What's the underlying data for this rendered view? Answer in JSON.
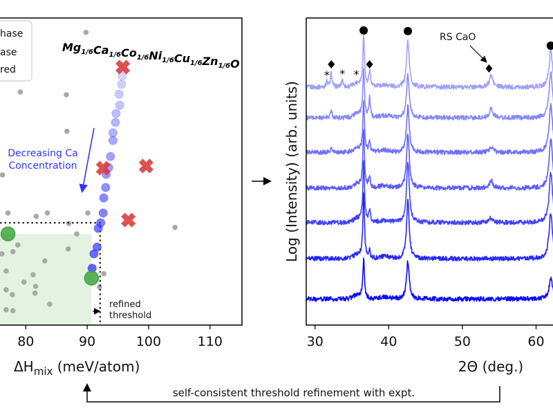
{
  "chart_data": [
    {
      "type": "scatter",
      "title": {
        "elements": [
          "Mg",
          "Ca",
          "Co",
          "Ni",
          "Cu",
          "Zn",
          "O"
        ],
        "subscript": "1/6"
      },
      "xlabel": {
        "main": "ΔH",
        "sub": "mix",
        "unit": " (meV/atom)"
      },
      "ylabel": "",
      "xlim": [
        75.8,
        115.2
      ],
      "ylim": [
        0,
        100
      ],
      "xticks": [
        "80",
        "90",
        "100",
        "110"
      ],
      "legend": {
        "placement": "top-left",
        "entries": [
          "hase",
          "ase",
          "red"
        ]
      },
      "annotations": {
        "ca_line": [
          "Decreasing Ca",
          "Concentration"
        ],
        "threshold": [
          "refined",
          "threshold"
        ]
      },
      "threshold": {
        "x": 92.1,
        "y": 33.3
      },
      "shaded_region": {
        "xmax": 90.7,
        "ymax": 29.7,
        "color": "#d9ecd5"
      },
      "colors": {
        "gray": "#a9a9a9",
        "blue": "#3333ff",
        "red": "#d83a3a",
        "green": "#3fa63f"
      },
      "series": [
        {
          "kind": "gray",
          "points": [
            [
              89.8,
              95.3
            ],
            [
              79.1,
              75.9
            ],
            [
              86.6,
              75.0
            ],
            [
              86.7,
              63.1
            ],
            [
              76.2,
              48.9
            ],
            [
              77.1,
              36.5
            ],
            [
              81.7,
              35.4
            ],
            [
              83.5,
              36.5
            ],
            [
              90.1,
              36.5
            ],
            [
              87.0,
              33.1
            ],
            [
              88.3,
              29.7
            ],
            [
              78.7,
              26.1
            ],
            [
              77.9,
              23.9
            ],
            [
              76.1,
              23.2
            ],
            [
              86.9,
              24.8
            ],
            [
              83.1,
              20.9
            ],
            [
              76.8,
              17.6
            ],
            [
              81.2,
              16.4
            ],
            [
              79.7,
              14.0
            ],
            [
              92.7,
              16.7
            ],
            [
              81.6,
              12.6
            ],
            [
              81.5,
              10.4
            ],
            [
              76.8,
              11.5
            ],
            [
              77.8,
              9.9
            ],
            [
              92.0,
              12.4
            ],
            [
              83.9,
              6.8
            ],
            [
              76.8,
              5.0
            ],
            [
              77.9,
              4.7
            ],
            [
              104.3,
              31.8
            ]
          ]
        },
        {
          "kind": "blue",
          "points": [
            [
              95.7,
              81.1
            ],
            [
              95.6,
              78.4
            ],
            [
              95.2,
              75.2
            ],
            [
              95.3,
              71.6
            ],
            [
              94.7,
              68.9
            ],
            [
              94.6,
              66.0
            ],
            [
              94.2,
              62.6
            ],
            [
              94.2,
              60.1
            ],
            [
              93.8,
              54.9
            ],
            [
              93.5,
              51.3
            ],
            [
              93.1,
              49.1
            ],
            [
              93.0,
              44.8
            ],
            [
              92.7,
              41.4
            ],
            [
              92.6,
              36.5
            ],
            [
              92.2,
              33.3
            ],
            [
              91.8,
              31.5
            ],
            [
              91.6,
              25.4
            ],
            [
              91.1,
              23.2
            ],
            [
              90.8,
              18.5
            ]
          ]
        },
        {
          "kind": "red",
          "points": [
            [
              95.8,
              84.0
            ],
            [
              92.6,
              51.1
            ],
            [
              99.6,
              51.8
            ],
            [
              96.7,
              34.2
            ]
          ]
        },
        {
          "kind": "green",
          "points": [
            [
              77.1,
              29.7
            ],
            [
              90.7,
              15.3
            ]
          ]
        }
      ]
    },
    {
      "type": "line",
      "xlabel": "2Θ (deg.)",
      "ylabel": "Log (Intensity) (arb. units)",
      "xlim": [
        28.8,
        62.3
      ],
      "ylim": [
        0,
        8
      ],
      "xticks": [
        "30",
        "40",
        "50",
        "60"
      ],
      "annotations": {
        "rs_cao": "RS CaO"
      },
      "markers": {
        "circle": [
          36.6,
          42.6,
          62.0
        ],
        "diamond": [
          32.2,
          37.4,
          53.9
        ],
        "asterisk": [
          31.6,
          33.7,
          35.6
        ]
      },
      "series": [
        {
          "offset": 6.2,
          "color": "#9f9fff",
          "peaks": [
            [
              31.6,
              0.15
            ],
            [
              32.2,
              0.35
            ],
            [
              33.7,
              0.2
            ],
            [
              36.6,
              1.35
            ],
            [
              37.4,
              0.45
            ],
            [
              42.6,
              1.2
            ],
            [
              53.9,
              0.3
            ],
            [
              62.0,
              0.95
            ]
          ]
        },
        {
          "offset": 5.4,
          "color": "#8787ff",
          "peaks": [
            [
              32.2,
              0.2
            ],
            [
              36.6,
              1.25
            ],
            [
              37.4,
              0.5
            ],
            [
              42.6,
              1.1
            ],
            [
              53.9,
              0.25
            ],
            [
              62.0,
              1.2
            ]
          ]
        },
        {
          "offset": 4.5,
          "color": "#6f6fff",
          "peaks": [
            [
              32.2,
              0.1
            ],
            [
              36.6,
              1.3
            ],
            [
              37.4,
              0.3
            ],
            [
              42.6,
              1.2
            ],
            [
              53.9,
              0.15
            ],
            [
              62.0,
              1.25
            ]
          ]
        },
        {
          "offset": 3.57,
          "color": "#5a5aff",
          "peaks": [
            [
              36.6,
              1.5
            ],
            [
              37.4,
              0.3
            ],
            [
              42.6,
              1.4
            ],
            [
              53.9,
              0.2
            ],
            [
              62.0,
              1.3
            ]
          ]
        },
        {
          "offset": 2.67,
          "color": "#4040ff",
          "peaks": [
            [
              36.6,
              1.6
            ],
            [
              37.4,
              0.3
            ],
            [
              42.6,
              1.6
            ],
            [
              53.9,
              0.12
            ],
            [
              62.0,
              1.3
            ]
          ]
        },
        {
          "offset": 1.73,
          "color": "#2525ff",
          "peaks": [
            [
              36.6,
              1.7
            ],
            [
              37.4,
              0.2
            ],
            [
              42.6,
              1.5
            ],
            [
              62.0,
              1.2
            ]
          ]
        },
        {
          "offset": 0.68,
          "color": "#0a0aff",
          "peaks": [
            [
              36.6,
              1.0
            ],
            [
              42.6,
              1.0
            ],
            [
              62.0,
              0.55
            ]
          ]
        }
      ]
    }
  ],
  "feedback_label": "self-consistent threshold refinement with expt."
}
